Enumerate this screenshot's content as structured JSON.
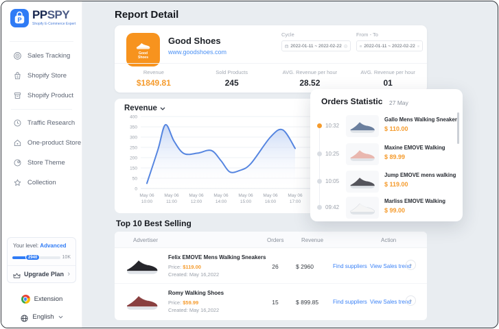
{
  "sidebar": {
    "logo": {
      "brand_bold": "PP",
      "brand_light": "SPY",
      "tagline": "Shopify E-Commerce Expert"
    },
    "menu": [
      {
        "label": "Sales Tracking",
        "icon": "target-icon"
      },
      {
        "label": "Shopify Store",
        "icon": "store-bag-icon"
      },
      {
        "label": "Shopify Product",
        "icon": "product-box-icon"
      },
      {
        "label": "Traffic Research",
        "icon": "clock-icon"
      },
      {
        "label": "One-product Store",
        "icon": "home-icon"
      },
      {
        "label": "Store Theme",
        "icon": "theme-icon"
      },
      {
        "label": "Collection",
        "icon": "star-icon"
      }
    ],
    "divider_after_index": 2,
    "level_card": {
      "prefix": "Your level:",
      "level": "Advanced",
      "progress_label": "2940",
      "progress_max_label": "10K",
      "upgrade_label": "Upgrade Plan"
    },
    "extension_label": "Extension",
    "language_label": "English"
  },
  "header": {
    "title": "Report Detail"
  },
  "store_card": {
    "name": "Good Shoes",
    "url": "www.goodshoes.com",
    "badge_line1": "Good",
    "badge_line2": "Shoes",
    "badge_color": "#f7931e",
    "cycle": {
      "label": "Cycle",
      "value": "2022-01-11 ~ 2022-02-22"
    },
    "from_to": {
      "label": "From - To",
      "value": "2022-01-11 ~ 2022-02-22"
    },
    "stats": [
      {
        "label": "Revenue",
        "value": "$1849.81",
        "accent": true
      },
      {
        "label": "Sold Products",
        "value": "245",
        "accent": false
      },
      {
        "label": "AVG. Revenue per hour",
        "value": "28.52",
        "accent": false
      },
      {
        "label": "AVG. Revenue per hour",
        "value": "01",
        "accent": false
      }
    ]
  },
  "chart_data": {
    "type": "area",
    "title": "Revenue",
    "legend_position": "none",
    "grid": true,
    "y_tick_labels": [
      400,
      350,
      300,
      250,
      200,
      150,
      50,
      0
    ],
    "y_axis_note": "tick labels as shown on screen (value 100 is skipped)",
    "x_tick_labels": [
      [
        "May 06",
        "10:00"
      ],
      [
        "May 06",
        "11:00"
      ],
      [
        "May 06",
        "12:00"
      ],
      [
        "May 06",
        "14:00"
      ],
      [
        "May 06",
        "15:00"
      ],
      [
        "May 06",
        "16:00"
      ],
      [
        "May 06",
        "17:00"
      ]
    ],
    "x_range": [
      0,
      6
    ],
    "line_color": "#5585e0",
    "fill_color": "#b9cdf3",
    "series": [
      {
        "name": "Revenue",
        "points": [
          [
            0,
            25
          ],
          [
            0.45,
            240
          ],
          [
            0.75,
            360
          ],
          [
            1.1,
            280
          ],
          [
            1.5,
            220
          ],
          [
            2.05,
            222
          ],
          [
            2.6,
            235
          ],
          [
            3.0,
            185
          ],
          [
            3.35,
            112
          ],
          [
            3.75,
            125
          ],
          [
            4.2,
            170
          ],
          [
            5.0,
            300
          ],
          [
            5.5,
            335
          ],
          [
            6.0,
            245
          ]
        ]
      }
    ]
  },
  "orders_panel": {
    "title": "Orders Statistic",
    "date": "27 May",
    "items": [
      {
        "time": "10:32",
        "name": "Gallo Mens Walking Sneakers...",
        "price": "$ 110.00",
        "shoe_color": "#6b7f9e",
        "shoe_stroke": "none",
        "active": true
      },
      {
        "time": "10:25",
        "name": "Maxine EMOVE Walking",
        "price": "$ 89.99",
        "shoe_color": "#e9b7af",
        "shoe_stroke": "none",
        "active": false
      },
      {
        "time": "10:05",
        "name": "Jump EMOVE mens walking s...",
        "price": "$ 119.00",
        "shoe_color": "#55555c",
        "shoe_stroke": "none",
        "active": false
      },
      {
        "time": "09:42",
        "name": "Marliss EMOVE Walking",
        "price": "$ 99.00",
        "shoe_color": "#f5f5f5",
        "shoe_stroke": "#d8dce2",
        "active": false
      }
    ]
  },
  "best_selling": {
    "title": "Top 10 Best Selling",
    "columns": [
      "Advertiser",
      "Orders",
      "Revenue",
      "Action"
    ],
    "price_label": "Price:",
    "created_label": "Created:",
    "rows": [
      {
        "name": "Felix EMOVE Mens Walking Sneakers",
        "price": "$119.00",
        "created": "May 16,2022",
        "orders": "26",
        "revenue": "$ 2960",
        "action_find": "Find suppliers",
        "action_trend": "View Sales trend",
        "shoe_color": "#26262b",
        "shoe_stroke": "none"
      },
      {
        "name": "Romy Walking Shoes",
        "price": "$59.99",
        "created": "May 16,2022",
        "orders": "15",
        "revenue": "$ 899.85",
        "action_find": "Find suppliers",
        "action_trend": "View Sales trend",
        "shoe_color": "#8a4040",
        "shoe_stroke": "none"
      }
    ]
  },
  "colors": {
    "accent_orange": "#f59b2d",
    "brand_blue": "#2f7bf5",
    "link_blue": "#3b82f6",
    "main_bg": "#e9edf1"
  }
}
